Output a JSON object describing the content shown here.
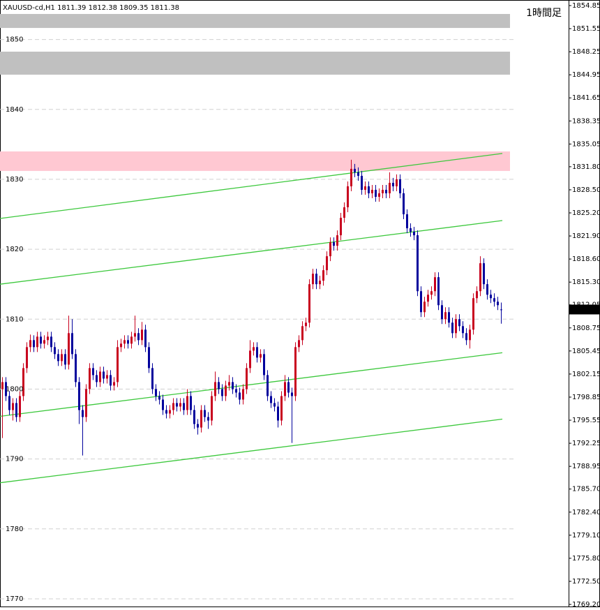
{
  "chart_data": {
    "type": "candlestick",
    "title": "XAUUSD-cd,H1  1811.39 1812.38 1809.35 1811.38",
    "timeframe": "1時間足",
    "up_color": "#c8001e",
    "down_color": "#00009c",
    "ylim": [
      1769.2,
      1854.85
    ],
    "yticks": [
      1770,
      1780,
      1790,
      1800,
      1810,
      1820,
      1830,
      1840,
      1850
    ],
    "y2lim": [
      1769.2,
      1854.85
    ],
    "y2ticks": [
      1854.85,
      1851.55,
      1848.25,
      1844.95,
      1841.65,
      1838.35,
      1835.05,
      {
        "value": 1831.8,
        "label": "1831.80"
      },
      {
        "value": 1828.5,
        "label": "1828.50"
      },
      {
        "value": 1825.2,
        "label": "1825.20"
      },
      {
        "value": 1821.9,
        "label": "1821.90"
      },
      {
        "value": 1818.6,
        "label": "1818.60"
      },
      {
        "value": 1815.3,
        "label": "1815.30"
      },
      1812.05,
      1808.75,
      1805.45,
      1802.15,
      1798.85,
      1795.55,
      1792.25,
      1788.95,
      {
        "value": 1785.7,
        "label": "1785.70"
      },
      {
        "value": 1782.4,
        "label": "1782.40"
      },
      {
        "value": 1779.1,
        "label": "1779.10"
      },
      {
        "value": 1775.8,
        "label": "1775.80"
      },
      {
        "value": 1772.5,
        "label": "1772.50"
      },
      {
        "value": 1769.2,
        "label": "1769.20"
      }
    ],
    "grid": true,
    "zones": [
      {
        "from": 1851.65,
        "to": 1853.65,
        "color": "#c0c0c0"
      },
      {
        "from": 1844.97,
        "to": 1848.26,
        "color": "#c0c0c0"
      },
      {
        "from": 1831.2,
        "to": 1833.99,
        "color": "#ffc8d2"
      }
    ],
    "trendlines": [
      {
        "start": 1824.4,
        "end": 1833.7,
        "color": "#3cc83c"
      },
      {
        "start": 1815.0,
        "end": 1824.1,
        "color": "#3cc83c"
      },
      {
        "start": 1796.1,
        "end": 1805.2,
        "color": "#3cc83c"
      },
      {
        "start": 1786.6,
        "end": 1795.7,
        "color": "#3cc83c"
      }
    ],
    "open": [
      1800,
      1801,
      1799,
      1797,
      1798,
      1796,
      1799,
      1803,
      1806,
      1807,
      1806,
      1807.5,
      1806.5,
      1807,
      1807.5,
      1806,
      1805,
      1804,
      1805,
      1803.5,
      1808,
      1805,
      1801,
      1797,
      1796,
      1800,
      1803,
      1802,
      1801,
      1802.5,
      1801.5,
      1802,
      1800.5,
      1801,
      1806,
      1806.5,
      1807,
      1806.5,
      1807.5,
      1808,
      1807,
      1808.5,
      1806,
      1803,
      1800,
      1799,
      1798.5,
      1797,
      1796.5,
      1797,
      1798,
      1797.5,
      1798,
      1797,
      1799,
      1797,
      1795,
      1794.5,
      1797,
      1796,
      1795.5,
      1799,
      1801,
      1800,
      1799,
      1800.5,
      1801,
      1800,
      1799.5,
      1798.5,
      1800,
      1803,
      1805.5,
      1806,
      1804.5,
      1805,
      1802,
      1799,
      1798,
      1797.5,
      1795.5,
      1799,
      1801,
      1799.5,
      1799,
      1806,
      1807,
      1809,
      1809.5,
      1815,
      1816.5,
      1815,
      1815.5,
      1817,
      1819,
      1821,
      1820.5,
      1822,
      1824.5,
      1826,
      1829,
      1831.5,
      1831,
      1830.5,
      1828.5,
      1829,
      1828,
      1828.5,
      1827.5,
      1828,
      1828.5,
      1828,
      1829.5,
      1829,
      1830,
      1828,
      1825,
      1823,
      1822.5,
      1822,
      1814,
      1811,
      1812.5,
      1813.5,
      1814,
      1816,
      1812,
      1810,
      1811,
      1809.5,
      1808,
      1810,
      1809,
      1808,
      1807,
      1808.5,
      1813,
      1814,
      1818,
      1815,
      1813.5,
      1813,
      1812.5,
      1811.39
    ],
    "high": [
      1801.7,
      1801.7,
      1799.7,
      1798.7,
      1798.7,
      1799.7,
      1803.7,
      1806.7,
      1807.8,
      1807.7,
      1808.2,
      1808.2,
      1807.7,
      1808.2,
      1808.2,
      1806.7,
      1805.7,
      1805.7,
      1805.7,
      1810.5,
      1810,
      1805.7,
      1801.7,
      1797.7,
      1800.7,
      1803.7,
      1803.7,
      1802.7,
      1803.2,
      1803.2,
      1802.7,
      1802.7,
      1801.7,
      1807,
      1807.2,
      1807.7,
      1807.7,
      1808.2,
      1810.5,
      1808.7,
      1809.6,
      1809.2,
      1806.7,
      1803.7,
      1800.7,
      1799.7,
      1799.2,
      1797.7,
      1797.7,
      1798.7,
      1798.7,
      1798.7,
      1798.7,
      1800,
      1799.7,
      1797.7,
      1795.7,
      1797.7,
      1797.7,
      1796.7,
      1799.7,
      1802.5,
      1801.7,
      1800.7,
      1801.2,
      1802,
      1801.7,
      1800.7,
      1800.2,
      1800.7,
      1803.7,
      1807,
      1806.7,
      1806.7,
      1805.7,
      1805.7,
      1802.7,
      1799.7,
      1798.7,
      1798.2,
      1799.7,
      1802,
      1801.7,
      1800.2,
      1806.7,
      1807.7,
      1809.7,
      1810.2,
      1815.7,
      1817.2,
      1817.2,
      1816.2,
      1817.7,
      1819.7,
      1821.7,
      1821.7,
      1822.7,
      1825.2,
      1826.7,
      1829.7,
      1832.8,
      1832.2,
      1831.7,
      1831.2,
      1829.7,
      1829.7,
      1829.2,
      1829.2,
      1828.7,
      1829.2,
      1829.2,
      1831,
      1830.2,
      1830.7,
      1830.7,
      1828.7,
      1825.7,
      1823.7,
      1823.2,
      1822.7,
      1814.7,
      1813.2,
      1814.2,
      1814.7,
      1816.7,
      1816.7,
      1812.7,
      1811.7,
      1811.7,
      1810.2,
      1810.7,
      1810.7,
      1809.7,
      1808.7,
      1809.2,
      1813.7,
      1814.7,
      1819,
      1818.7,
      1815.7,
      1814.2,
      1813.7,
      1813.2,
      1812.38
    ],
    "low": [
      1793,
      1798.3,
      1796.3,
      1795.5,
      1795.3,
      1795.3,
      1798.3,
      1802.3,
      1805.3,
      1805.3,
      1805.3,
      1805.8,
      1805.8,
      1806.3,
      1805.3,
      1804.3,
      1803.3,
      1803.3,
      1802.8,
      1802.8,
      1804.3,
      1800.3,
      1795,
      1790.5,
      1795.3,
      1799.3,
      1801.3,
      1800.3,
      1800.3,
      1800.8,
      1800.8,
      1799.8,
      1799.8,
      1800.3,
      1805.3,
      1805.8,
      1805.8,
      1805.8,
      1806.8,
      1806.3,
      1806.3,
      1805.3,
      1802.3,
      1799.3,
      1798.3,
      1797.8,
      1796.3,
      1795.8,
      1795.8,
      1796.3,
      1796.8,
      1796.8,
      1796.3,
      1796.3,
      1796.3,
      1794.3,
      1793.5,
      1793.8,
      1795.3,
      1794.3,
      1794.8,
      1798.3,
      1799.3,
      1798.3,
      1798.3,
      1799.8,
      1799.3,
      1798.8,
      1797.8,
      1797.8,
      1799.3,
      1802.3,
      1804.8,
      1803.8,
      1803.8,
      1801.3,
      1798.3,
      1797.3,
      1796.8,
      1794.5,
      1794.8,
      1798.3,
      1798.8,
      1792.3,
      1798.3,
      1805.3,
      1806.3,
      1808.3,
      1808.8,
      1814.3,
      1814.3,
      1814.3,
      1814.8,
      1816.3,
      1818.3,
      1819.8,
      1819.8,
      1821.3,
      1823.8,
      1825.3,
      1828.3,
      1830.3,
      1829.8,
      1827.8,
      1827.8,
      1827.3,
      1827.3,
      1826.8,
      1826.8,
      1827.3,
      1827.3,
      1827.3,
      1828.3,
      1828.3,
      1827.3,
      1824.3,
      1822.3,
      1821.8,
      1821.3,
      1813.3,
      1810.3,
      1810.3,
      1811.8,
      1812.8,
      1813.3,
      1811.3,
      1809.3,
      1809.3,
      1808.8,
      1807.3,
      1807.3,
      1808.3,
      1807.3,
      1806.3,
      1805.8,
      1807.8,
      1812.3,
      1813.3,
      1814.3,
      1812.8,
      1812.3,
      1811.8,
      1811.3,
      1809.35
    ],
    "close": [
      1801,
      1799,
      1797,
      1798,
      1796,
      1799,
      1803,
      1806,
      1807,
      1806,
      1807.5,
      1806.5,
      1807,
      1807.5,
      1806,
      1805,
      1804,
      1805,
      1803.5,
      1808,
      1805,
      1801,
      1797,
      1796,
      1800,
      1803,
      1802,
      1801,
      1802.5,
      1801.5,
      1802,
      1800.5,
      1801,
      1806,
      1806.5,
      1807,
      1806.5,
      1807.5,
      1808,
      1807,
      1808.5,
      1806,
      1803,
      1800,
      1799,
      1798.5,
      1797,
      1796.5,
      1797,
      1798,
      1797.5,
      1798,
      1797,
      1799,
      1797,
      1795,
      1794.5,
      1797,
      1796,
      1795.5,
      1799,
      1801,
      1800,
      1799,
      1800.5,
      1801,
      1800,
      1799.5,
      1798.5,
      1800,
      1803,
      1805.5,
      1806,
      1804.5,
      1805,
      1802,
      1799,
      1798,
      1797.5,
      1795.5,
      1799,
      1801,
      1799.5,
      1799,
      1806,
      1807,
      1809,
      1809.5,
      1815,
      1816.5,
      1815,
      1815.5,
      1817,
      1819,
      1821,
      1820.5,
      1822,
      1824.5,
      1826,
      1829,
      1831.5,
      1831,
      1830.5,
      1828.5,
      1829,
      1828,
      1828.5,
      1827.5,
      1828,
      1828.5,
      1828,
      1829.5,
      1829,
      1830,
      1828,
      1825,
      1823,
      1822.5,
      1822,
      1814,
      1811,
      1812.5,
      1813.5,
      1814,
      1816,
      1812,
      1810,
      1811,
      1809.5,
      1808,
      1810,
      1809,
      1808,
      1807,
      1808.5,
      1813,
      1814,
      1818,
      1815,
      1813.5,
      1813,
      1812.5,
      1812,
      1811.38
    ]
  }
}
